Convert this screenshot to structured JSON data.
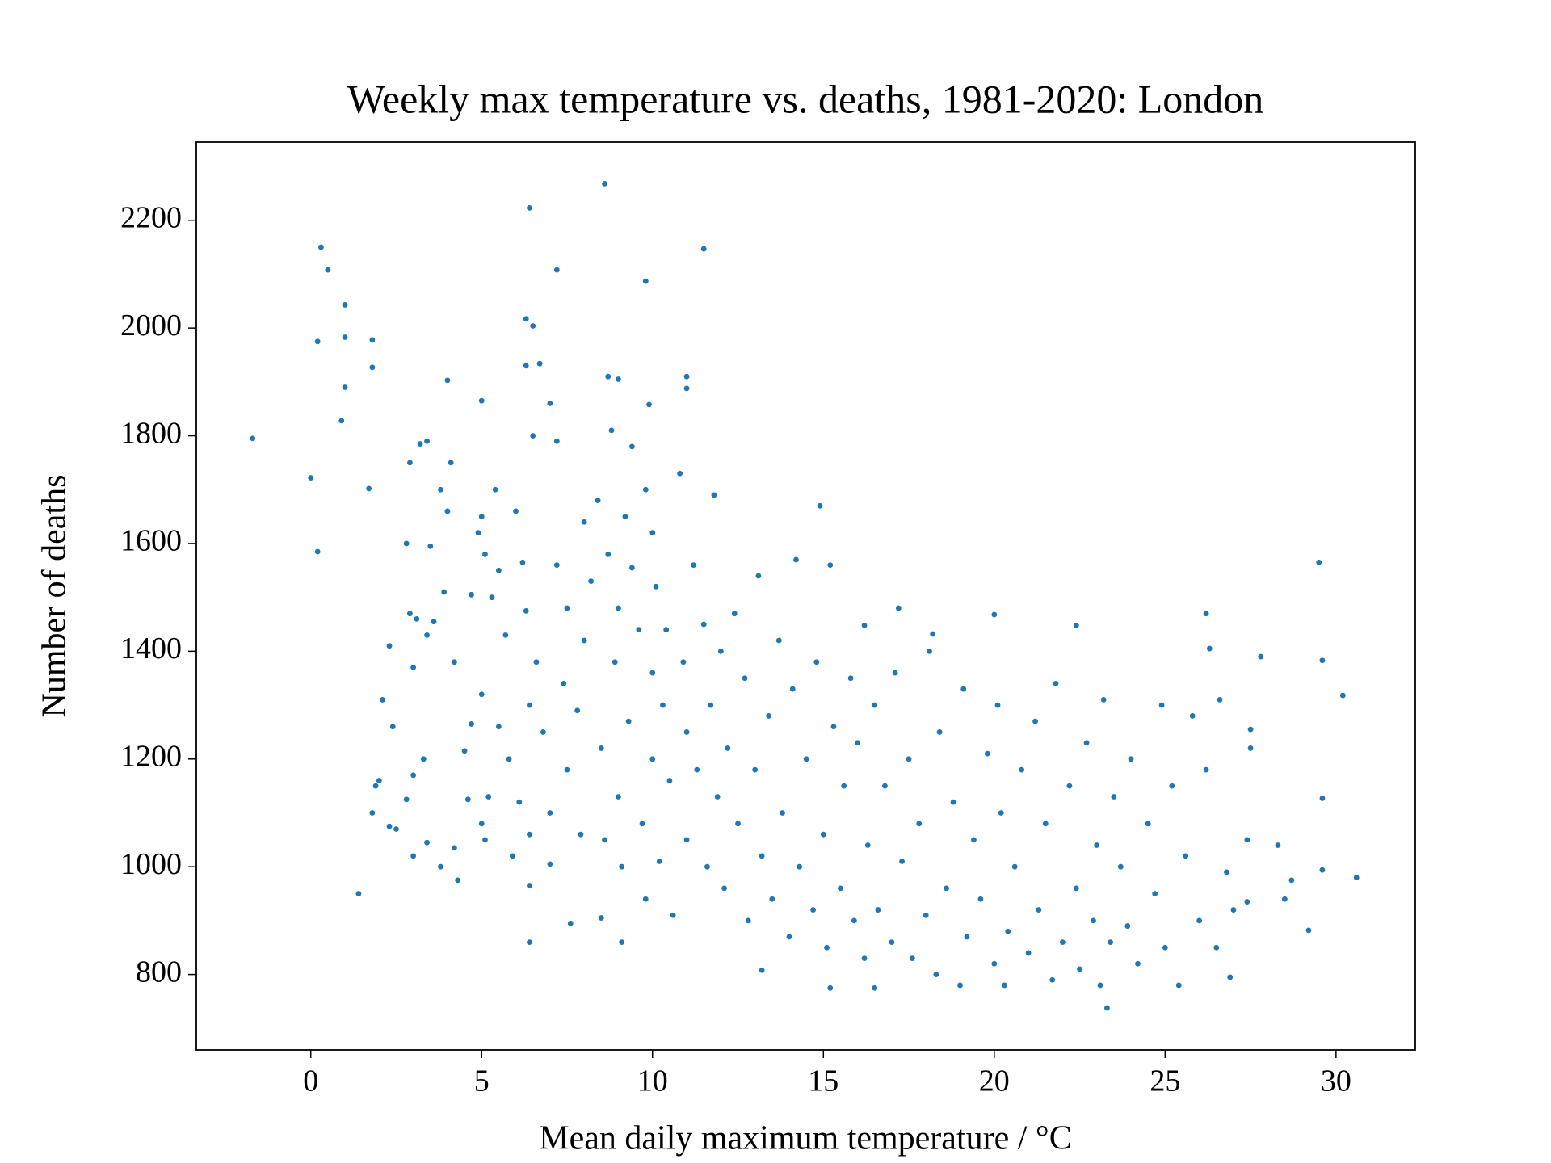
{
  "chart_data": {
    "type": "scatter",
    "title": "Weekly max temperature vs. deaths, 1981-2020: London",
    "xlabel": "Mean daily maximum temperature / °C",
    "ylabel": "Number of deaths",
    "color": "#1f77b4",
    "xlim": [
      -3.35,
      32.32
    ],
    "ylim": [
      660,
      2345
    ],
    "xticks": [
      0,
      5,
      10,
      15,
      20,
      25,
      30
    ],
    "yticks": [
      800,
      1000,
      1200,
      1400,
      1600,
      1800,
      2000,
      2200
    ],
    "grid": false,
    "x": [
      -1.7,
      0,
      0.2,
      0.2,
      0.3,
      0.5,
      1.0,
      1.0,
      1.0,
      0.9,
      1.7,
      1.8,
      1.8,
      1.4,
      6.4,
      8.6,
      7.2,
      9.8,
      11.5,
      6.3,
      6.5,
      6.3,
      6.7,
      8.7,
      9.0,
      11.0,
      11.0,
      9.9,
      7.0,
      4.0,
      5.0,
      29.5,
      29.6,
      30.2,
      30.6,
      29.6,
      29.6,
      29.2,
      28.7,
      28.5,
      28.3,
      27.8,
      27.5,
      27.5,
      27.4,
      27.4,
      26.9,
      27.0,
      26.2,
      26.3,
      6.4,
      13.2,
      15.2,
      16.5,
      23.3,
      14.9,
      15.2,
      17.2,
      20.0,
      22.4,
      16.2,
      18.2,
      2.3,
      2.4,
      2.1,
      2.0,
      1.9,
      1.8,
      2.3,
      2.5,
      2.8,
      3.0,
      3.0,
      3.0,
      2.8,
      2.9,
      3.1,
      3.2,
      3.4,
      2.9,
      3.5,
      3.4,
      3.6,
      3.3,
      3.4,
      3.8,
      3.9,
      4.0,
      3.8,
      4.1,
      4.2,
      4.2,
      4.3,
      4.5,
      4.6,
      4.7,
      4.7,
      4.9,
      5.0,
      5.1,
      5.0,
      5.0,
      5.1,
      5.2,
      5.4,
      5.3,
      5.5,
      5.5,
      5.7,
      5.8,
      5.9,
      6.0,
      6.2,
      6.3,
      6.4,
      6.1,
      6.4,
      6.4,
      6.5,
      6.6,
      6.8,
      7.0,
      7.0,
      7.2,
      7.2,
      7.4,
      7.5,
      7.5,
      7.6,
      7.8,
      7.9,
      8.0,
      8.0,
      8.2,
      8.4,
      8.5,
      8.5,
      8.6,
      8.7,
      8.8,
      8.9,
      9.0,
      9.0,
      9.1,
      9.1,
      9.2,
      9.3,
      9.4,
      9.4,
      9.6,
      9.7,
      9.8,
      9.8,
      10.0,
      10.0,
      10.0,
      10.1,
      10.2,
      10.3,
      10.4,
      10.5,
      10.6,
      10.8,
      10.9,
      11.0,
      11.0,
      11.2,
      11.3,
      11.5,
      11.6,
      11.7,
      11.8,
      11.9,
      12.0,
      12.1,
      12.2,
      12.4,
      12.5,
      12.7,
      12.8,
      13.0,
      13.1,
      13.2,
      13.4,
      13.5,
      13.7,
      13.8,
      14.0,
      14.1,
      14.2,
      14.3,
      14.5,
      14.7,
      14.8,
      15.0,
      15.1,
      15.3,
      15.5,
      15.6,
      15.8,
      15.9,
      16.0,
      16.2,
      16.3,
      16.5,
      16.6,
      16.8,
      17.0,
      17.1,
      17.3,
      17.5,
      17.6,
      17.8,
      18.0,
      18.1,
      18.3,
      18.4,
      18.6,
      18.8,
      19.0,
      19.1,
      19.2,
      19.4,
      19.6,
      19.8,
      20.0,
      20.1,
      20.2,
      20.3,
      20.4,
      20.6,
      20.8,
      21.0,
      21.2,
      21.3,
      21.5,
      21.7,
      21.8,
      22.0,
      22.2,
      22.4,
      22.5,
      22.7,
      22.9,
      23.0,
      23.1,
      23.2,
      23.4,
      23.5,
      23.7,
      23.9,
      24.0,
      24.2,
      24.5,
      24.7,
      24.9,
      25.0,
      25.2,
      25.4,
      25.6,
      25.8,
      26.0,
      26.2,
      26.5,
      26.6,
      26.8
    ],
    "y": [
      1795,
      1722,
      1585,
      1975,
      2150,
      2108,
      2043,
      1983,
      1890,
      1828,
      1702,
      1978,
      1927,
      950,
      2223,
      2268,
      2108,
      2087,
      2147,
      2017,
      2004,
      1930,
      1934,
      1910,
      1905,
      1910,
      1888,
      1858,
      1860,
      1903,
      1865,
      1565,
      1383,
      1318,
      980,
      1127,
      994,
      882,
      975,
      940,
      1040,
      1390,
      1255,
      1220,
      1050,
      935,
      795,
      920,
      1470,
      1405,
      860,
      808,
      775,
      775,
      738,
      1670,
      1560,
      1480,
      1468,
      1448,
      1448,
      1432,
      1410,
      1260,
      1310,
      1160,
      1150,
      1100,
      1075,
      1070,
      1125,
      1020,
      1170,
      1370,
      1600,
      1470,
      1460,
      1785,
      1790,
      1750,
      1595,
      1430,
      1455,
      1200,
      1045,
      1000,
      1510,
      1660,
      1700,
      1750,
      1380,
      1035,
      975,
      1215,
      1125,
      1505,
      1265,
      1620,
      1650,
      1580,
      1320,
      1080,
      1050,
      1130,
      1700,
      1500,
      1550,
      1260,
      1430,
      1200,
      1020,
      1660,
      1565,
      1475,
      1300,
      1120,
      1060,
      965,
      1800,
      1380,
      1250,
      1100,
      1005,
      1790,
      1560,
      1340,
      1480,
      1180,
      895,
      1290,
      1060,
      1420,
      1640,
      1530,
      1680,
      1220,
      905,
      1050,
      1580,
      1810,
      1380,
      1480,
      1130,
      860,
      1000,
      1650,
      1270,
      1780,
      1555,
      1440,
      1080,
      1700,
      940,
      1620,
      1360,
      1200,
      1520,
      1010,
      1300,
      1440,
      1160,
      910,
      1730,
      1380,
      1250,
      1050,
      1560,
      1180,
      1450,
      1000,
      1300,
      1690,
      1130,
      1400,
      960,
      1220,
      1470,
      1080,
      1350,
      900,
      1180,
      1540,
      1020,
      1280,
      940,
      1420,
      1100,
      870,
      1330,
      1570,
      1000,
      1200,
      920,
      1380,
      1060,
      850,
      1260,
      960,
      1150,
      1350,
      900,
      1230,
      830,
      1040,
      1300,
      920,
      1150,
      860,
      1360,
      1010,
      1200,
      830,
      1080,
      910,
      1400,
      800,
      1250,
      960,
      1120,
      780,
      1330,
      870,
      1050,
      940,
      1210,
      820,
      1300,
      1100,
      780,
      880,
      1000,
      1180,
      840,
      1270,
      920,
      1080,
      790,
      1340,
      860,
      1150,
      960,
      810,
      1230,
      900,
      1040,
      780,
      1310,
      860,
      1130,
      1000,
      890,
      1200,
      820,
      1080,
      950,
      1300,
      850,
      1150,
      780,
      1020,
      1280,
      900,
      1180,
      850,
      1310,
      990
    ]
  }
}
